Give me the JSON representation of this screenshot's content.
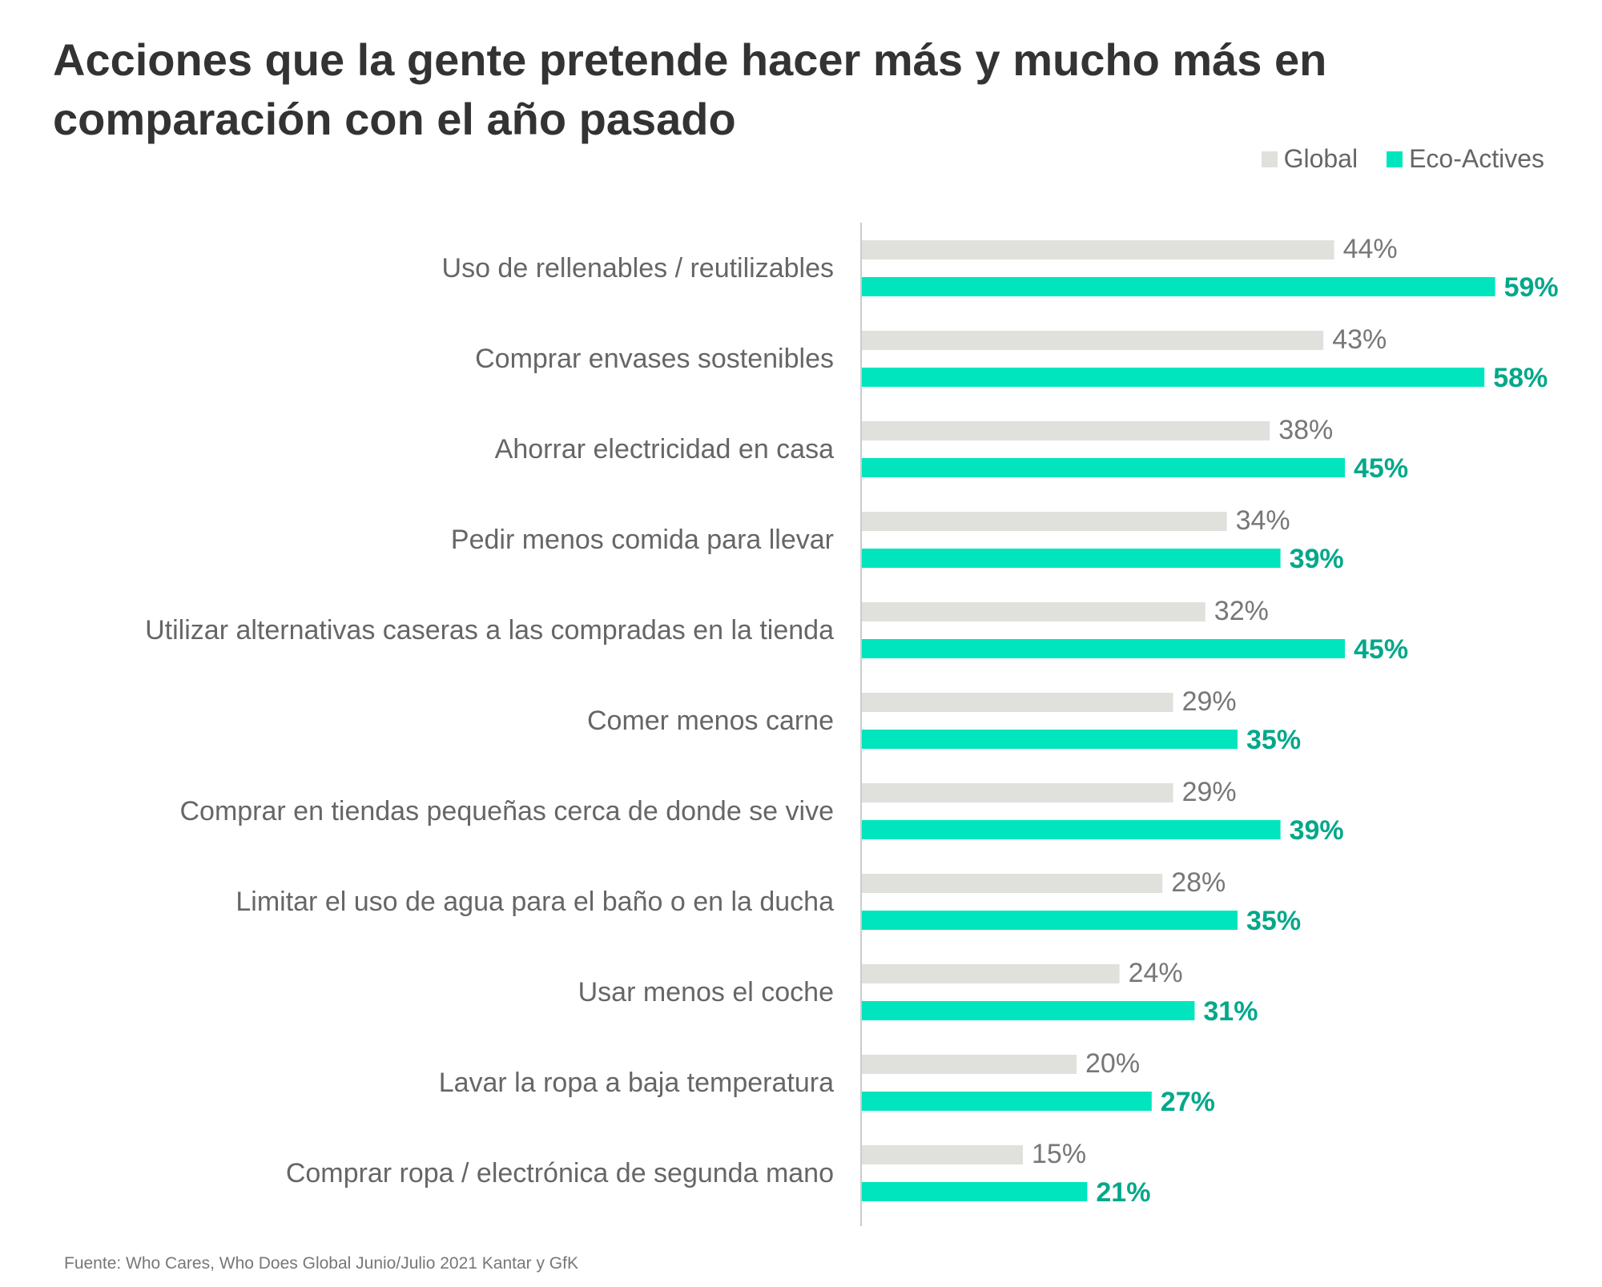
{
  "colors": {
    "global": "#e0e0dc",
    "eco": "#00e5bd",
    "eco_label": "#00a88a",
    "axis": "#cccccc"
  },
  "chart_data": {
    "type": "bar",
    "orientation": "horizontal",
    "title": "Acciones que la gente pretende hacer más y mucho más en comparación con el año pasado",
    "legend": [
      "Global",
      "Eco-Actives"
    ],
    "legend_position": "top-right",
    "value_suffix": "%",
    "grid": false,
    "xlim": [
      0,
      59
    ],
    "categories": [
      "Uso de rellenables / reutilizables",
      "Comprar envases sostenibles",
      "Ahorrar electricidad en casa",
      "Pedir menos comida para llevar",
      "Utilizar alternativas caseras a las compradas en la tienda",
      "Comer menos carne",
      "Comprar en tiendas pequeñas cerca de donde se vive",
      "Limitar el uso de agua para el baño o en la ducha",
      "Usar menos el coche",
      "Lavar la ropa a baja temperatura",
      "Comprar ropa / electrónica de segunda mano"
    ],
    "series": [
      {
        "name": "Global",
        "values": [
          44,
          43,
          38,
          34,
          32,
          29,
          29,
          28,
          24,
          20,
          15
        ]
      },
      {
        "name": "Eco-Actives",
        "values": [
          59,
          58,
          45,
          39,
          45,
          35,
          39,
          35,
          31,
          27,
          21
        ]
      }
    ]
  },
  "source": "Fuente: Who Cares, Who Does Global Junio/Julio 2021 Kantar y GfK"
}
